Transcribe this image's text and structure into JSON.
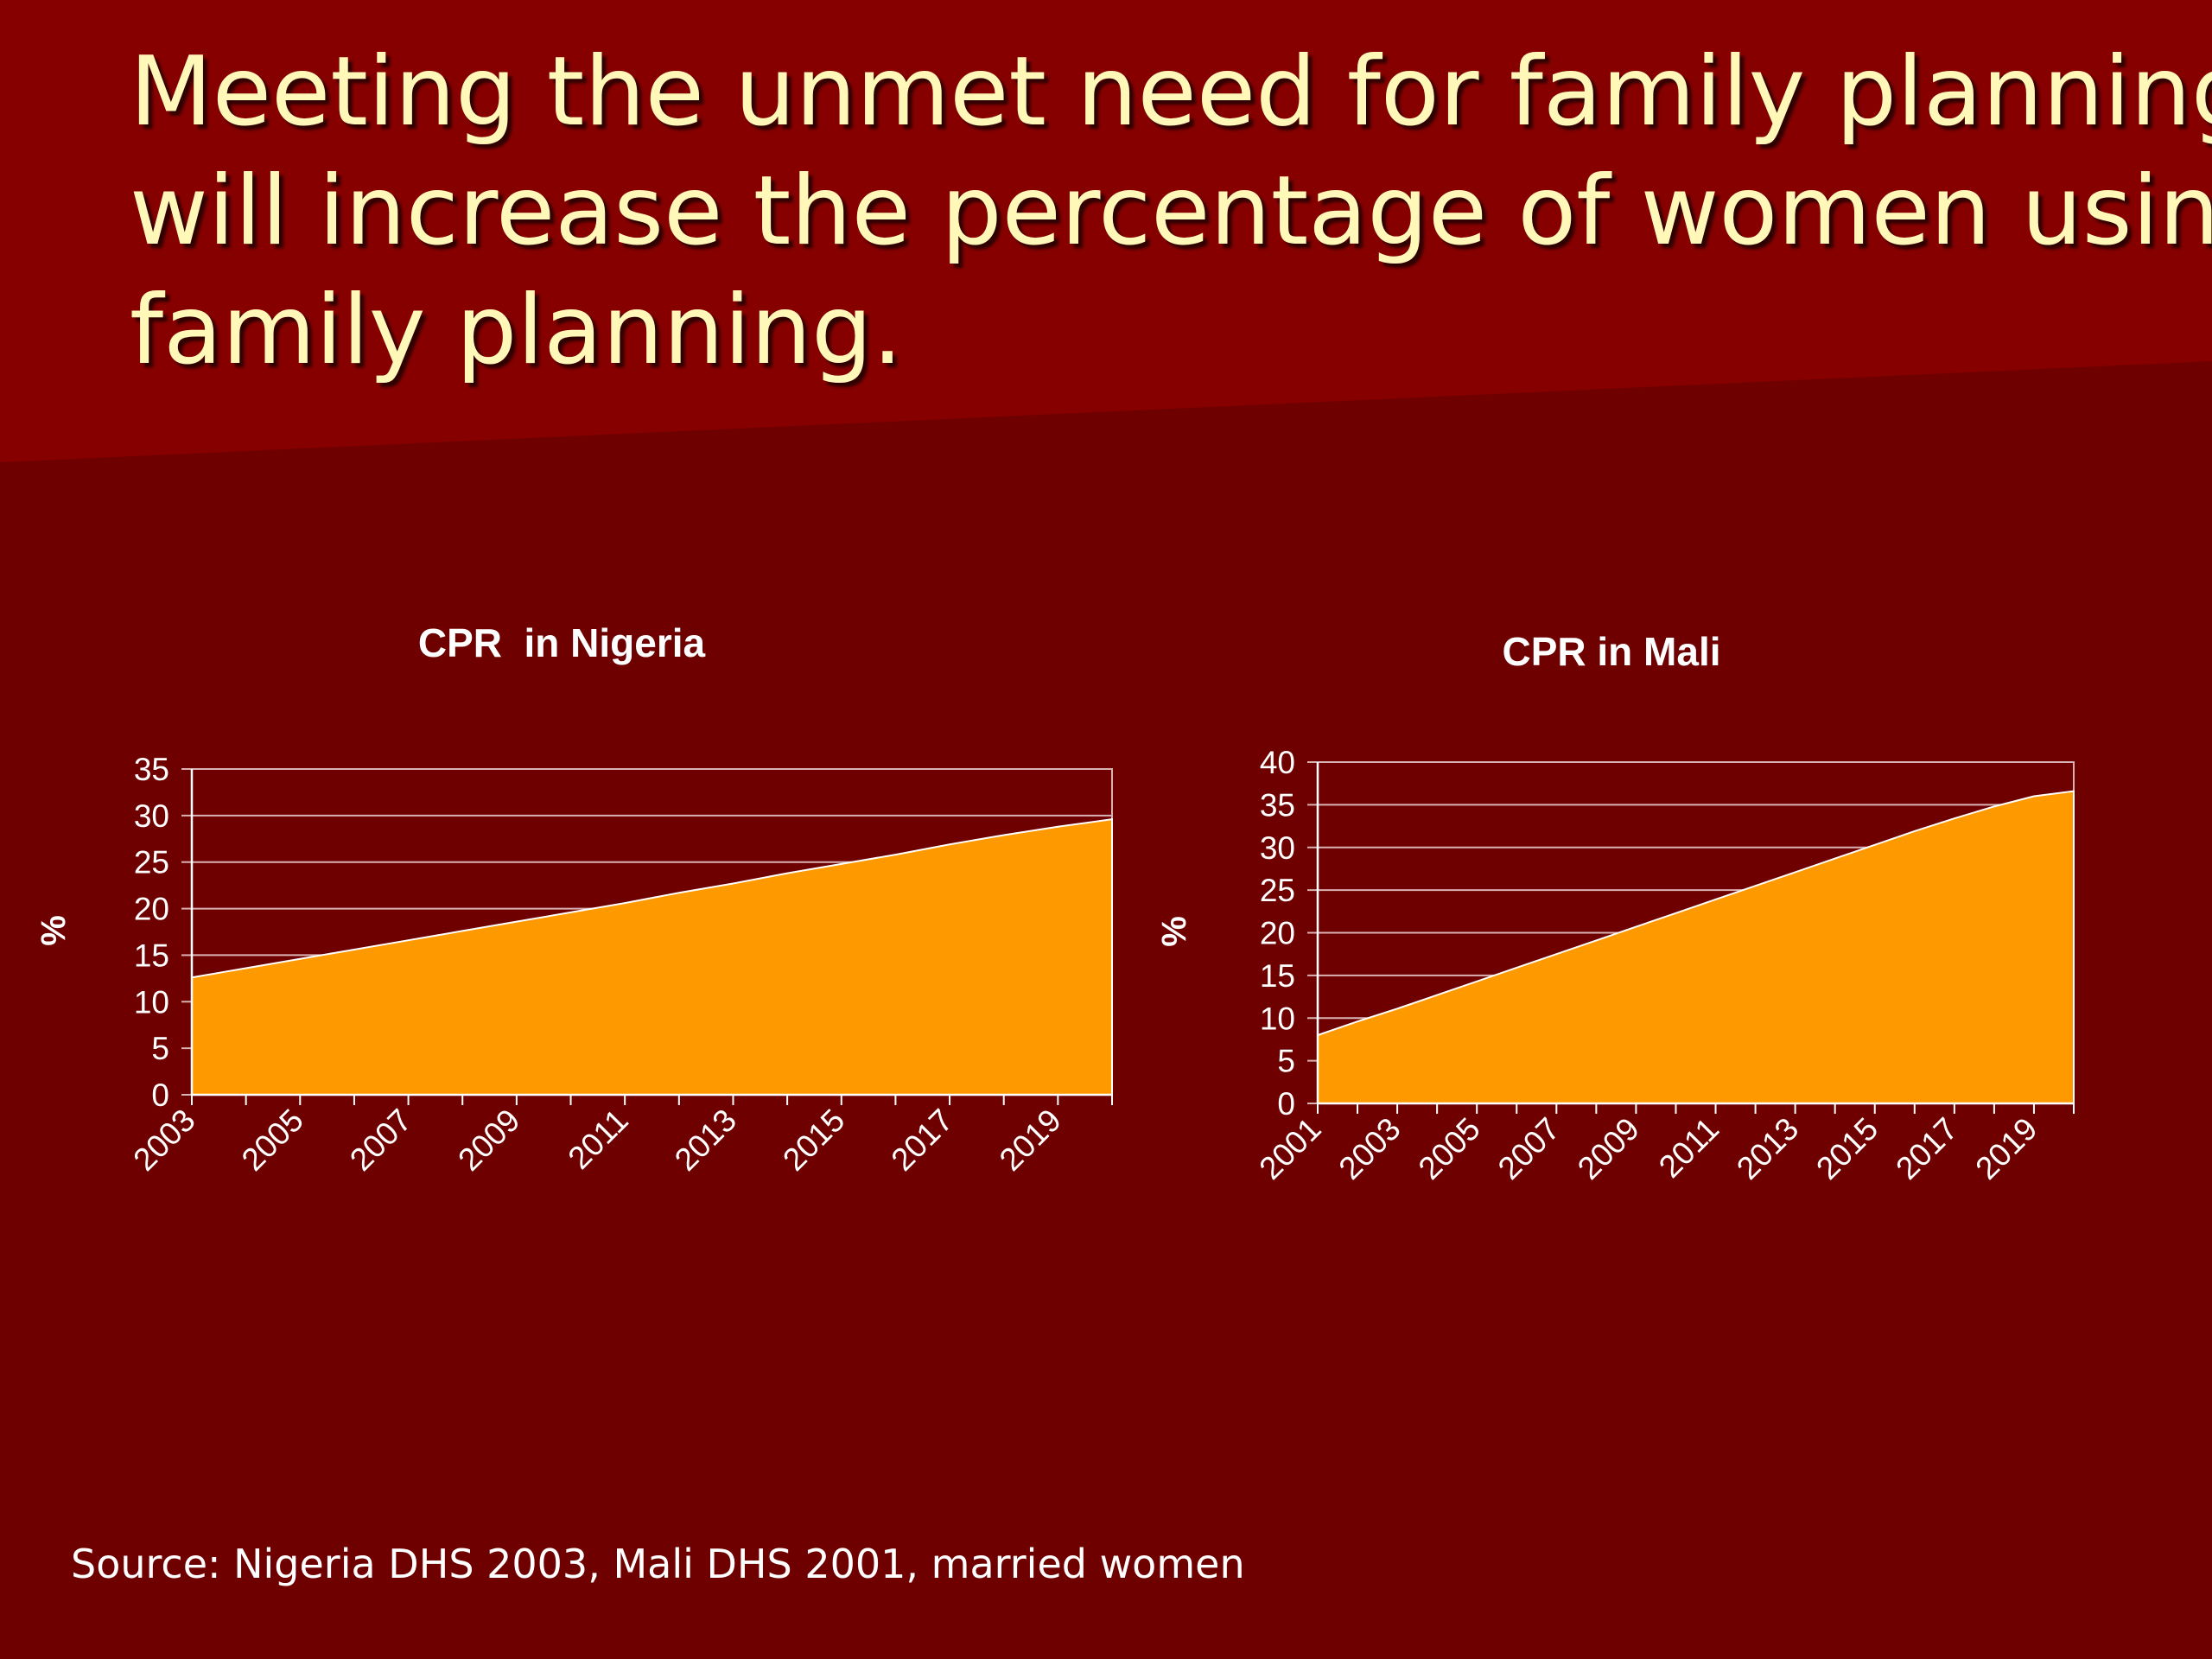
{
  "slide": {
    "title_lines": [
      "Meeting the unmet need for family planning",
      "will increase the percentage of women using",
      "family planning."
    ],
    "source": "Source: Nigeria DHS 2003, Mali DHS 2001, married women",
    "colors": {
      "background_dark": "#6f0000",
      "background_band": "#860000",
      "title_text": "#fff8b8",
      "area_fill": "#ff9900",
      "gridline": "#d9b3b3",
      "axis_text": "#ffffff"
    }
  },
  "chart_data": [
    {
      "type": "area",
      "title": "CPR  in Nigeria",
      "xlabel": "",
      "ylabel": "%",
      "x": [
        2003,
        2004,
        2005,
        2006,
        2007,
        2008,
        2009,
        2010,
        2011,
        2012,
        2013,
        2014,
        2015,
        2016,
        2017,
        2018,
        2019,
        2020
      ],
      "values": [
        12.6,
        13.6,
        14.6,
        15.6,
        16.6,
        17.6,
        18.6,
        19.6,
        20.6,
        21.7,
        22.7,
        23.8,
        24.8,
        25.8,
        26.9,
        27.9,
        28.8,
        29.6
      ],
      "x_tick_labels": [
        "2003",
        "2005",
        "2007",
        "2009",
        "2011",
        "2013",
        "2015",
        "2017",
        "2019"
      ],
      "y_ticks": [
        0,
        5,
        10,
        15,
        20,
        25,
        30,
        35
      ],
      "ylim": [
        0,
        35
      ],
      "grid": true,
      "legend": "none"
    },
    {
      "type": "area",
      "title": "CPR in Mali",
      "xlabel": "",
      "ylabel": "%",
      "x": [
        2001,
        2002,
        2003,
        2004,
        2005,
        2006,
        2007,
        2008,
        2009,
        2010,
        2011,
        2012,
        2013,
        2014,
        2015,
        2016,
        2017,
        2018,
        2019,
        2020
      ],
      "values": [
        8.0,
        9.6,
        11.1,
        12.7,
        14.3,
        15.9,
        17.5,
        19.1,
        20.7,
        22.3,
        23.9,
        25.5,
        27.1,
        28.7,
        30.3,
        31.9,
        33.4,
        34.8,
        36.0,
        36.6
      ],
      "x_tick_labels": [
        "2001",
        "2003",
        "2005",
        "2007",
        "2009",
        "2011",
        "2013",
        "2015",
        "2017",
        "2019"
      ],
      "y_ticks": [
        0,
        5,
        10,
        15,
        20,
        25,
        30,
        35,
        40
      ],
      "ylim": [
        0,
        40
      ],
      "grid": true,
      "legend": "none"
    }
  ]
}
